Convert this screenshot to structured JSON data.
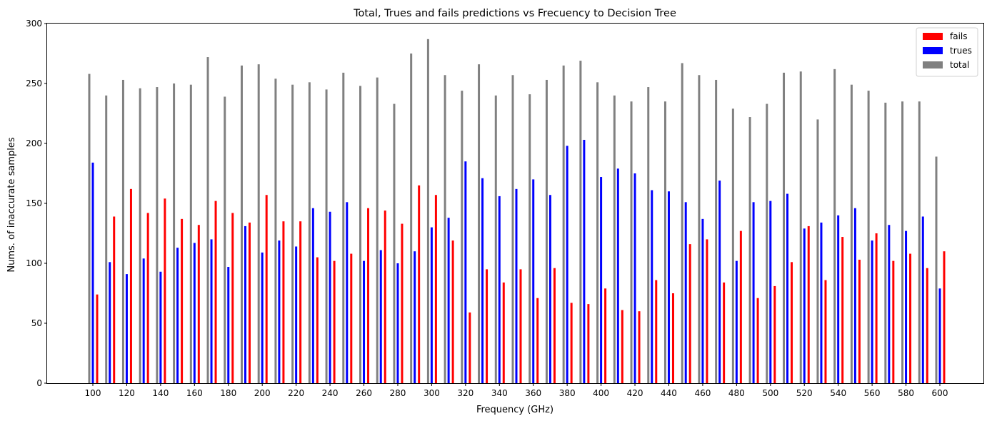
{
  "chart_data": {
    "type": "bar",
    "title": "Total, Trues and fails predictions vs Frecuency to Decision Tree",
    "xlabel": "Frequency (GHz)",
    "ylabel": "Nums. of inaccurate samples",
    "ylim": [
      0,
      300
    ],
    "yticks": [
      0,
      50,
      100,
      150,
      200,
      250,
      300
    ],
    "xticks": [
      100,
      120,
      140,
      160,
      180,
      200,
      220,
      240,
      260,
      280,
      300,
      320,
      340,
      360,
      380,
      400,
      420,
      440,
      460,
      480,
      500,
      520,
      540,
      560,
      580,
      600
    ],
    "legend_position": "top-right",
    "grid": false,
    "x": [
      100,
      110,
      120,
      130,
      140,
      150,
      160,
      170,
      180,
      190,
      200,
      210,
      220,
      230,
      240,
      250,
      260,
      270,
      280,
      290,
      300,
      310,
      320,
      330,
      340,
      350,
      360,
      370,
      380,
      390,
      400,
      410,
      420,
      430,
      440,
      450,
      460,
      470,
      480,
      490,
      500,
      510,
      520,
      530,
      540,
      550,
      560,
      570,
      580,
      590,
      600
    ],
    "series": [
      {
        "name": "fails",
        "color": "#ff0000",
        "values": [
          74,
          139,
          162,
          142,
          154,
          137,
          132,
          152,
          142,
          134,
          157,
          135,
          135,
          105,
          102,
          108,
          146,
          144,
          133,
          165,
          157,
          119,
          59,
          95,
          84,
          95,
          71,
          96,
          67,
          66,
          79,
          61,
          60,
          86,
          75,
          116,
          120,
          84,
          127,
          71,
          81,
          101,
          131,
          86,
          122,
          103,
          125,
          102,
          108,
          96,
          110
        ]
      },
      {
        "name": "trues",
        "color": "#0000ff",
        "values": [
          184,
          101,
          91,
          104,
          93,
          113,
          117,
          120,
          97,
          131,
          109,
          119,
          114,
          146,
          143,
          151,
          102,
          111,
          100,
          110,
          130,
          138,
          185,
          171,
          156,
          162,
          170,
          157,
          198,
          203,
          172,
          179,
          175,
          161,
          160,
          151,
          137,
          169,
          102,
          151,
          152,
          158,
          129,
          134,
          140,
          146,
          119,
          132,
          127,
          139,
          79
        ]
      },
      {
        "name": "total",
        "color": "#808080",
        "values": [
          258,
          240,
          253,
          246,
          247,
          250,
          249,
          272,
          239,
          265,
          266,
          254,
          249,
          251,
          245,
          259,
          248,
          255,
          233,
          275,
          287,
          257,
          244,
          266,
          240,
          257,
          241,
          253,
          265,
          269,
          251,
          240,
          235,
          247,
          235,
          267,
          257,
          253,
          229,
          222,
          233,
          259,
          260,
          220,
          262,
          249,
          244,
          234,
          235,
          235,
          189
        ]
      }
    ]
  }
}
